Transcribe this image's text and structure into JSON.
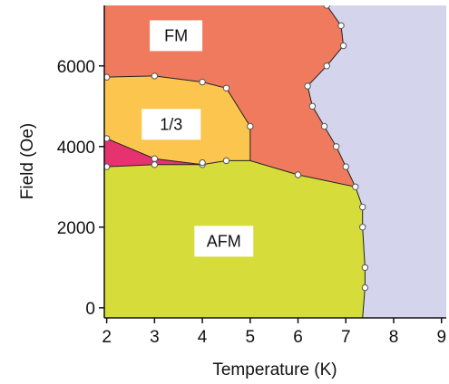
{
  "chart_data": {
    "type": "scatter",
    "title": "",
    "xlabel": "Temperature (K)",
    "ylabel": "Field (Oe)",
    "xlim": [
      1.95,
      9.1
    ],
    "ylim": [
      -250,
      7500
    ],
    "x_ticks": [
      2,
      3,
      4,
      5,
      6,
      7,
      8,
      9
    ],
    "y_ticks": [
      0,
      2000,
      4000,
      6000
    ],
    "grid": false,
    "colors": {
      "paramagnetic": "#d4d4ec",
      "fm": "#f07a5e",
      "one_third": "#fcc64e",
      "intermediate": "#e6326e",
      "afm": "#d6dc3a",
      "boundary": "#222222",
      "marker_fill": "#ffffff",
      "marker_edge": "#555555",
      "label_box": "#ffffff"
    },
    "regions": [
      {
        "label": "FM",
        "fill": "fm",
        "label_at": [
          3.45,
          6750
        ],
        "polygon": [
          [
            1.95,
            7500
          ],
          [
            6.6,
            7500
          ],
          [
            6.9,
            7000
          ],
          [
            6.95,
            6500
          ],
          [
            6.6,
            6000
          ],
          [
            6.2,
            5500
          ],
          [
            6.3,
            5000
          ],
          [
            6.55,
            4500
          ],
          [
            6.8,
            4000
          ],
          [
            7.0,
            3500
          ],
          [
            7.2,
            3000
          ],
          [
            6.0,
            3300
          ],
          [
            5.0,
            3650
          ],
          [
            5.0,
            4500
          ],
          [
            4.5,
            5450
          ],
          [
            4.0,
            5600
          ],
          [
            3.0,
            5750
          ],
          [
            1.95,
            5720
          ]
        ]
      },
      {
        "label": "1/3",
        "fill": "one_third",
        "label_at": [
          3.35,
          4550
        ],
        "polygon": [
          [
            1.95,
            5720
          ],
          [
            3.0,
            5750
          ],
          [
            4.0,
            5600
          ],
          [
            4.5,
            5450
          ],
          [
            5.0,
            4500
          ],
          [
            5.0,
            3650
          ],
          [
            4.5,
            3650
          ],
          [
            4.0,
            3550
          ],
          [
            3.0,
            3700
          ],
          [
            2.0,
            4200
          ],
          [
            1.95,
            4220
          ]
        ]
      },
      {
        "label": "",
        "fill": "intermediate",
        "polygon": [
          [
            1.95,
            4220
          ],
          [
            2.0,
            4200
          ],
          [
            3.0,
            3700
          ],
          [
            4.0,
            3550
          ],
          [
            3.0,
            3550
          ],
          [
            2.0,
            3500
          ],
          [
            1.95,
            3500
          ]
        ]
      },
      {
        "label": "AFM",
        "fill": "afm",
        "label_at": [
          4.45,
          1650
        ],
        "polygon": [
          [
            1.95,
            3500
          ],
          [
            2.0,
            3500
          ],
          [
            3.0,
            3550
          ],
          [
            4.0,
            3550
          ],
          [
            4.5,
            3650
          ],
          [
            5.0,
            3650
          ],
          [
            6.0,
            3300
          ],
          [
            7.2,
            3000
          ],
          [
            7.35,
            2500
          ],
          [
            7.35,
            2000
          ],
          [
            7.4,
            1000
          ],
          [
            7.4,
            500
          ],
          [
            7.35,
            -250
          ],
          [
            1.95,
            -250
          ]
        ]
      }
    ],
    "boundaries": [
      {
        "name": "fm-paramagnetic",
        "points": [
          [
            6.6,
            7500
          ],
          [
            6.9,
            7000
          ],
          [
            6.95,
            6500
          ],
          [
            6.6,
            6000
          ],
          [
            6.2,
            5500
          ],
          [
            6.3,
            5000
          ],
          [
            6.55,
            4500
          ],
          [
            6.8,
            4000
          ],
          [
            7.0,
            3500
          ],
          [
            7.2,
            3000
          ],
          [
            7.35,
            2500
          ],
          [
            7.35,
            2000
          ],
          [
            7.4,
            1000
          ],
          [
            7.4,
            500
          ],
          [
            7.35,
            -250
          ]
        ]
      },
      {
        "name": "fm-one-third",
        "points": [
          [
            1.95,
            5720
          ],
          [
            3.0,
            5750
          ],
          [
            4.0,
            5600
          ],
          [
            4.5,
            5450
          ],
          [
            5.0,
            4500
          ],
          [
            5.0,
            3650
          ]
        ]
      },
      {
        "name": "one-third-afm",
        "points": [
          [
            1.95,
            4220
          ],
          [
            2.0,
            4200
          ],
          [
            3.0,
            3700
          ],
          [
            4.0,
            3550
          ]
        ]
      },
      {
        "name": "afm-upper",
        "points": [
          [
            1.95,
            3500
          ],
          [
            2.0,
            3500
          ],
          [
            3.0,
            3550
          ],
          [
            4.0,
            3550
          ],
          [
            4.5,
            3650
          ],
          [
            5.0,
            3650
          ],
          [
            6.0,
            3300
          ],
          [
            7.2,
            3000
          ]
        ]
      }
    ],
    "series": [
      {
        "points": [
          [
            6.6,
            7500
          ],
          [
            6.9,
            7000
          ],
          [
            6.95,
            6500
          ],
          [
            6.6,
            6000
          ],
          [
            6.2,
            5500
          ],
          [
            6.3,
            5000
          ],
          [
            6.55,
            4500
          ],
          [
            6.8,
            4000
          ],
          [
            7.0,
            3500
          ],
          [
            7.2,
            3000
          ],
          [
            7.35,
            2500
          ],
          [
            7.35,
            2000
          ],
          [
            7.4,
            1000
          ],
          [
            7.4,
            500
          ],
          [
            2.0,
            5720
          ],
          [
            3.0,
            5750
          ],
          [
            4.0,
            5600
          ],
          [
            4.5,
            5450
          ],
          [
            5.0,
            4500
          ],
          [
            2.0,
            4200
          ],
          [
            3.0,
            3700
          ],
          [
            4.0,
            3550
          ],
          [
            2.0,
            3500
          ],
          [
            3.0,
            3550
          ],
          [
            4.0,
            3600
          ],
          [
            4.5,
            3650
          ],
          [
            6.0,
            3300
          ]
        ]
      }
    ]
  }
}
